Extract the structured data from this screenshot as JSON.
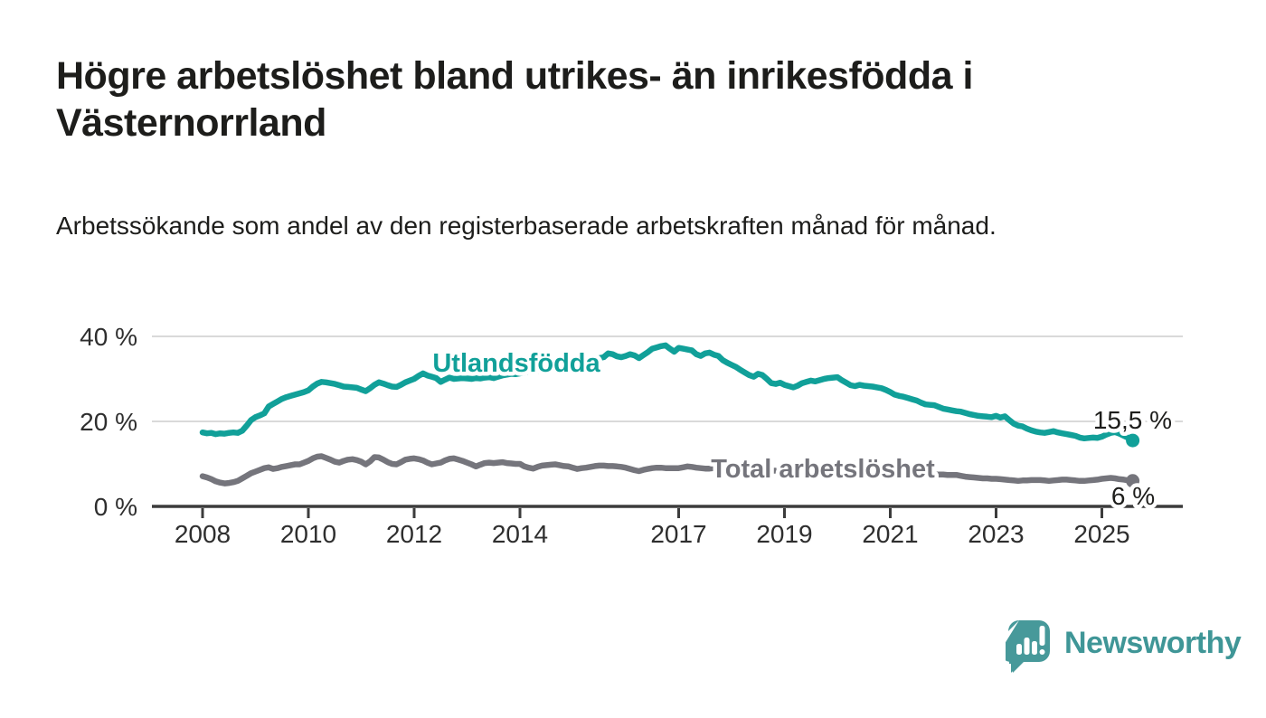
{
  "header": {
    "title": "Högre arbetslöshet bland utrikes- än inrikesfödda i Västernorrland",
    "subtitle": "Arbetssökande som andel av den registerbaserade arbetskraften månad för månad."
  },
  "footer": {
    "brand": "Newsworthy",
    "logo_icon": "bar-chart-speech-bubble-icon",
    "brand_color": "#3f9697"
  },
  "colors": {
    "foreign_born_line": "#11a099",
    "total_line": "#75757c",
    "axis": "#3c3c3c",
    "gridline": "#d9d9d9",
    "text": "#1d1d1b"
  },
  "chart_data": {
    "type": "line",
    "title": "Högre arbetslöshet bland utrikes- än inrikesfödda i Västernorrland",
    "subtitle": "Arbetssökande som andel av den registerbaserade arbetskraften månad för månad.",
    "x_start_year": 2008,
    "points_per_year": 12,
    "x_end_label_period": "2025 (augusti)",
    "x_ticks": [
      2008,
      2010,
      2012,
      2014,
      2017,
      2019,
      2021,
      2023,
      2025
    ],
    "y_ticks": [
      {
        "value": 0,
        "label": "0 %"
      },
      {
        "value": 20,
        "label": "20 %"
      },
      {
        "value": 40,
        "label": "40 %"
      }
    ],
    "ylim": [
      0,
      42
    ],
    "grid": true,
    "legend_position": "inline-labels",
    "series": [
      {
        "name": "Utlandsfödda",
        "slug": "utlandsfodda",
        "color": "#11a099",
        "end_value": 15.5,
        "end_label": "15,5 %",
        "values": [
          17.4,
          17.2,
          17.3,
          17.0,
          17.2,
          17.1,
          17.3,
          17.4,
          17.3,
          17.8,
          19.0,
          20.3,
          21.0,
          21.4,
          21.9,
          23.5,
          24.1,
          24.7,
          25.3,
          25.7,
          26.0,
          26.3,
          26.6,
          26.9,
          27.3,
          28.2,
          28.9,
          29.3,
          29.2,
          29.0,
          28.8,
          28.5,
          28.2,
          28.1,
          28.0,
          27.9,
          27.5,
          27.1,
          27.8,
          28.6,
          29.2,
          28.9,
          28.5,
          28.2,
          28.1,
          28.6,
          29.2,
          29.6,
          30.0,
          30.7,
          31.3,
          30.8,
          30.5,
          30.2,
          29.3,
          29.8,
          30.3,
          30.0,
          30.1,
          30.2,
          30.1,
          30.0,
          30.2,
          30.1,
          30.3,
          30.4,
          30.2,
          30.5,
          30.8,
          31.0,
          31.2,
          31.1,
          31.3,
          31.5,
          31.8,
          31.6,
          31.9,
          32.1,
          32.0,
          32.3,
          32.6,
          32.8,
          33.0,
          33.2,
          33.4,
          33.7,
          34.0,
          34.2,
          34.4,
          34.6,
          34.9,
          35.1,
          36.0,
          35.8,
          35.3,
          35.1,
          35.4,
          35.8,
          35.5,
          34.9,
          35.6,
          36.3,
          37.1,
          37.4,
          37.7,
          37.9,
          37.1,
          36.4,
          37.3,
          37.1,
          36.9,
          36.7,
          35.8,
          35.4,
          36.0,
          36.2,
          35.7,
          35.4,
          34.4,
          33.8,
          33.3,
          32.8,
          32.1,
          31.5,
          30.9,
          30.5,
          31.2,
          30.9,
          30.0,
          29.0,
          28.8,
          29.1,
          28.6,
          28.3,
          28.0,
          28.4,
          29.0,
          29.3,
          29.6,
          29.4,
          29.7,
          30.0,
          30.2,
          30.3,
          30.4,
          29.7,
          29.1,
          28.5,
          28.3,
          28.6,
          28.4,
          28.3,
          28.2,
          28.0,
          27.8,
          27.4,
          26.9,
          26.3,
          26.0,
          25.8,
          25.5,
          25.2,
          24.9,
          24.4,
          24.0,
          23.9,
          23.8,
          23.4,
          23.0,
          22.8,
          22.6,
          22.4,
          22.3,
          22.0,
          21.7,
          21.5,
          21.3,
          21.2,
          21.1,
          21.0,
          21.3,
          20.9,
          21.2,
          20.3,
          19.5,
          19.0,
          18.8,
          18.3,
          17.9,
          17.6,
          17.4,
          17.3,
          17.5,
          17.7,
          17.4,
          17.2,
          17.0,
          16.8,
          16.6,
          16.2,
          16.0,
          16.1,
          16.2,
          16.1,
          16.4,
          16.9,
          17.3,
          17.5,
          17.1,
          16.6,
          16.1,
          15.5
        ]
      },
      {
        "name": "Total arbetslöshet",
        "slug": "total-arbetsloshet",
        "color": "#75757c",
        "end_value": 6,
        "end_label": "6 %",
        "values": [
          7.1,
          6.8,
          6.4,
          5.9,
          5.6,
          5.4,
          5.5,
          5.7,
          6.0,
          6.6,
          7.2,
          7.8,
          8.2,
          8.6,
          9.0,
          9.2,
          8.8,
          9.0,
          9.3,
          9.5,
          9.7,
          9.9,
          9.9,
          10.3,
          10.7,
          11.3,
          11.7,
          11.8,
          11.4,
          11.0,
          10.5,
          10.3,
          10.7,
          11.0,
          11.1,
          10.9,
          10.5,
          9.9,
          10.6,
          11.6,
          11.5,
          11.0,
          10.4,
          10.0,
          9.9,
          10.4,
          11.0,
          11.2,
          11.3,
          11.1,
          10.8,
          10.3,
          9.9,
          10.1,
          10.3,
          10.8,
          11.2,
          11.3,
          11.0,
          10.7,
          10.3,
          9.9,
          9.4,
          9.8,
          10.2,
          10.3,
          10.2,
          10.3,
          10.4,
          10.2,
          10.1,
          10.0,
          10.0,
          9.4,
          9.1,
          8.9,
          9.3,
          9.6,
          9.7,
          9.8,
          9.9,
          9.7,
          9.5,
          9.4,
          9.1,
          8.8,
          9.0,
          9.1,
          9.3,
          9.5,
          9.6,
          9.6,
          9.5,
          9.5,
          9.4,
          9.3,
          9.1,
          8.8,
          8.5,
          8.3,
          8.6,
          8.8,
          9.0,
          9.1,
          9.1,
          9.0,
          9.0,
          9.0,
          9.0,
          9.2,
          9.4,
          9.3,
          9.1,
          9.0,
          8.9,
          8.9,
          9.0,
          9.0,
          8.9,
          8.9,
          8.8,
          8.7,
          8.6,
          8.5,
          8.4,
          8.4,
          8.5,
          8.5,
          8.4,
          8.4,
          8.4,
          8.5,
          8.5,
          8.4,
          8.4,
          8.5,
          8.5,
          8.6,
          8.7,
          8.7,
          8.8,
          8.9,
          9.0,
          9.2,
          9.4,
          9.6,
          9.8,
          10.0,
          10.1,
          10.1,
          10.0,
          9.9,
          9.8,
          9.6,
          9.4,
          9.3,
          9.1,
          8.9,
          8.7,
          8.5,
          8.4,
          8.2,
          8.1,
          7.9,
          7.8,
          7.7,
          7.6,
          7.5,
          7.5,
          7.4,
          7.4,
          7.4,
          7.2,
          7.0,
          6.9,
          6.8,
          6.7,
          6.6,
          6.6,
          6.5,
          6.5,
          6.4,
          6.3,
          6.2,
          6.1,
          6.0,
          6.1,
          6.1,
          6.2,
          6.2,
          6.2,
          6.1,
          6.0,
          6.1,
          6.2,
          6.3,
          6.3,
          6.2,
          6.1,
          6.0,
          6.0,
          6.1,
          6.2,
          6.3,
          6.5,
          6.6,
          6.7,
          6.6,
          6.4,
          6.3,
          6.1,
          6.0
        ]
      }
    ]
  }
}
